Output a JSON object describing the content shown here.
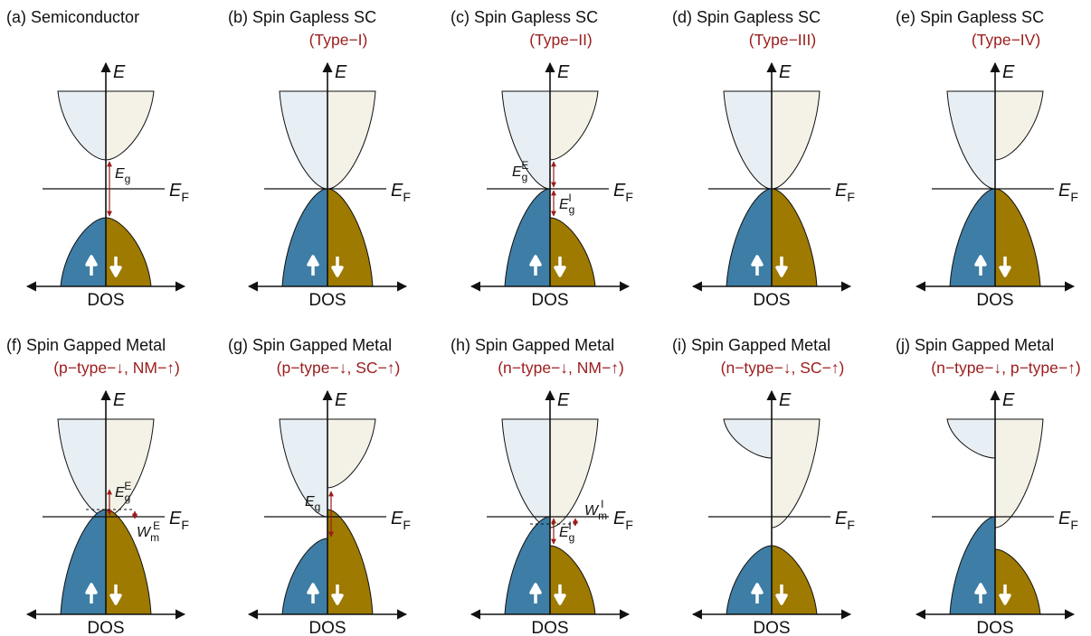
{
  "colors": {
    "spin_up_valence": "#3e7ea6",
    "spin_down_valence": "#9e7a00",
    "spin_up_conduction": "#e8eff4",
    "spin_down_conduction": "#f4f2e6",
    "gap_arrow": "#9b1c1c",
    "subtitle": "#9b1c1c",
    "line": "#111111"
  },
  "labels": {
    "energy_axis": "E",
    "fermi_main": "E",
    "fermi_sub": "F",
    "dos": "DOS"
  },
  "panels": [
    {
      "id": "a",
      "tag": "(a)",
      "title": "Semiconductor",
      "subtitle": "",
      "upper": "gap",
      "lower": "gap",
      "ann": [
        {
          "kind": "Eg",
          "main": "E",
          "sub": "g",
          "sup": ""
        }
      ]
    },
    {
      "id": "b",
      "tag": "(b)",
      "title": "Spin Gapless SC",
      "subtitle": "(Type−I)",
      "upper": "touch",
      "lower": "touch",
      "ann": []
    },
    {
      "id": "c",
      "tag": "(c)",
      "title": "Spin Gapless SC",
      "subtitle": "(Type−II)",
      "upper": "up-touch",
      "lower": "down-touch",
      "ann": [
        {
          "kind": "EgE",
          "main": "E",
          "sub": "g",
          "sup": "E"
        },
        {
          "kind": "EgI",
          "main": "E",
          "sub": "g",
          "sup": "I"
        }
      ]
    },
    {
      "id": "d",
      "tag": "(d)",
      "title": "Spin Gapless SC",
      "subtitle": "(Type−III)",
      "upper": "touch",
      "lower": "touch",
      "ann": []
    },
    {
      "id": "e",
      "tag": "(e)",
      "title": "Spin Gapless SC",
      "subtitle": "(Type−IV)",
      "upper": "up-touch",
      "lower": "touch",
      "ann": []
    },
    {
      "id": "f",
      "tag": "(f)",
      "title": "Spin Gapped Metal",
      "subtitle": "(p−type−↓, NM−↑)",
      "upper": "touch",
      "lower": "over",
      "ann": [
        {
          "kind": "EgE",
          "main": "E",
          "sub": "g",
          "sup": "E"
        },
        {
          "kind": "Wm",
          "main": "W",
          "sub": "m",
          "sup": "E"
        }
      ]
    },
    {
      "id": "g",
      "tag": "(g)",
      "title": "Spin Gapped Metal",
      "subtitle": "(p−type−↓, SC−↑)",
      "upper": "up-touch",
      "lower": "down-over",
      "ann": [
        {
          "kind": "Eg",
          "main": "E",
          "sub": "g",
          "sup": ""
        }
      ]
    },
    {
      "id": "h",
      "tag": "(h)",
      "title": "Spin Gapped Metal",
      "subtitle": "(n−type−↓, NM−↑)",
      "upper": "over",
      "lower": "down-touch",
      "ann": [
        {
          "kind": "Wm",
          "main": "W",
          "sub": "m",
          "sup": "I"
        },
        {
          "kind": "EgI",
          "main": "E",
          "sub": "g",
          "sup": "I"
        }
      ]
    },
    {
      "id": "i",
      "tag": "(i)",
      "title": "Spin Gapped Metal",
      "subtitle": "(n−type−↓, SC−↑)",
      "upper": "down-over",
      "lower": "gap",
      "ann": []
    },
    {
      "id": "j",
      "tag": "(j)",
      "title": "Spin Gapped Metal",
      "subtitle": "(n−type−↓, p−type−↑)",
      "upper": "down-over",
      "lower": "up-touch",
      "ann": []
    }
  ]
}
